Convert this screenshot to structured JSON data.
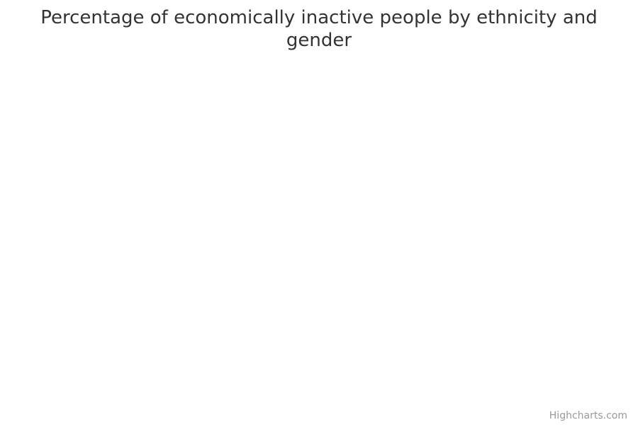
{
  "chart_data": {
    "type": "bar",
    "title": "Percentage of economically inactive people by ethnicity and gender",
    "categories": [],
    "series": []
  },
  "credits": {
    "label": "Highcharts.com"
  },
  "colors": {
    "title": "#333333",
    "credits": "#999999",
    "background": "#ffffff"
  }
}
